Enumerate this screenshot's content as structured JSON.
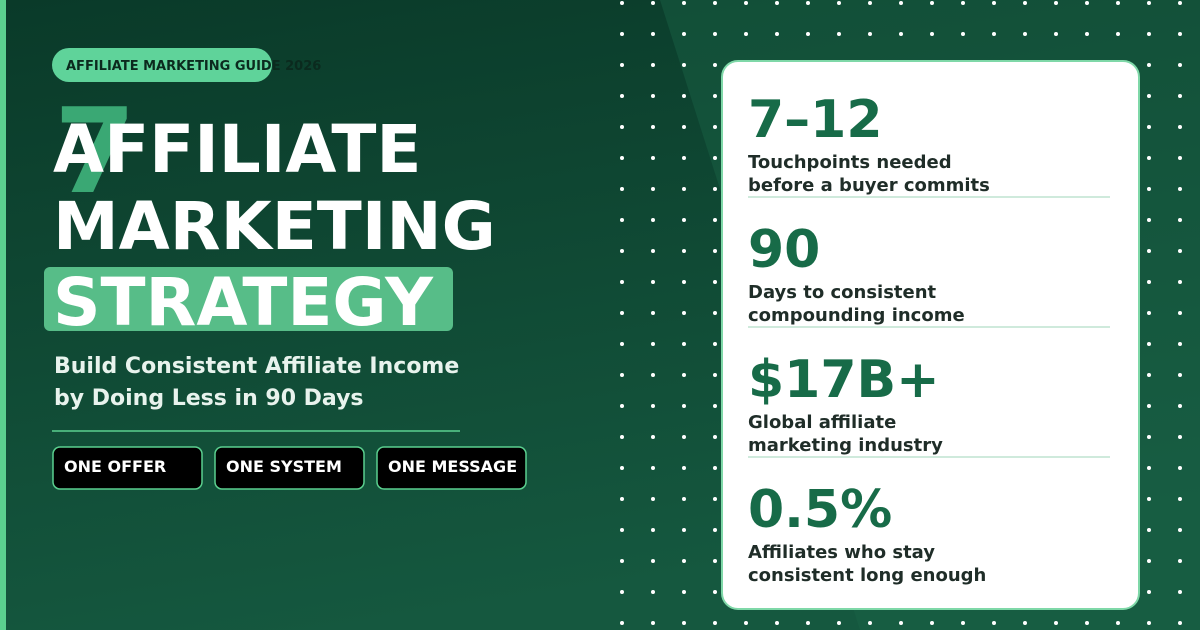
{
  "badge": "AFFILIATE MARKETING GUIDE 2026",
  "accent_number": "7",
  "title_lines": [
    "AFFILIATE",
    "MARKETING",
    "STRATEGY"
  ],
  "subtitle_lines": [
    "Build Consistent Affiliate Income",
    "by Doing Less in 90 Days"
  ],
  "tags": [
    "ONE OFFER",
    "ONE SYSTEM",
    "ONE MESSAGE"
  ],
  "stats": [
    {
      "value": "7–12",
      "label_lines": [
        "Touchpoints needed",
        "before a buyer commits"
      ]
    },
    {
      "value": "90",
      "label_lines": [
        "Days to consistent",
        "compounding income"
      ]
    },
    {
      "value": "$17B+",
      "label_lines": [
        "Global affiliate",
        "marketing industry"
      ]
    },
    {
      "value": "0.5%",
      "label_lines": [
        "Affiliates who stay",
        "consistent long enough"
      ]
    }
  ]
}
